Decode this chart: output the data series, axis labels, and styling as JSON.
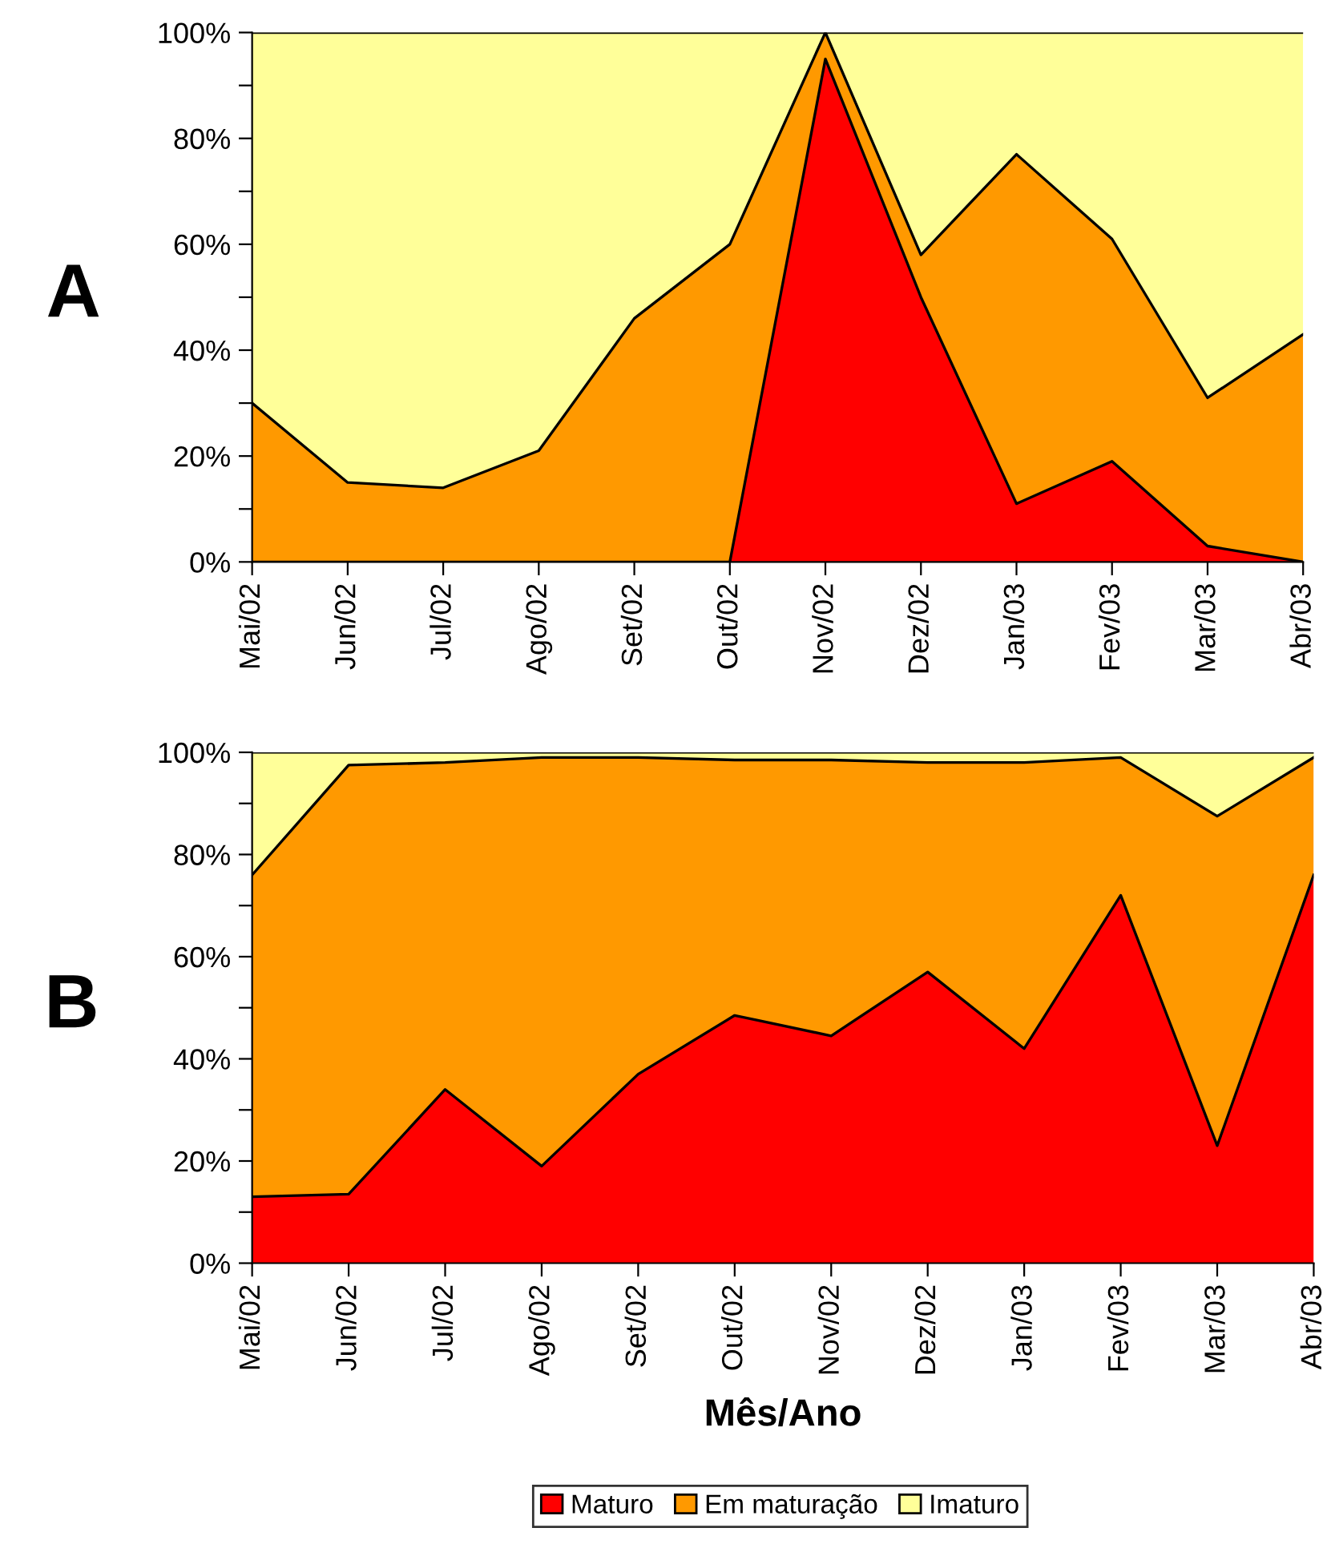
{
  "chart_data": [
    {
      "type": "area",
      "stacked": true,
      "annotations": [
        "A"
      ],
      "legend": false,
      "grid": false,
      "categories": [
        "Mai/02",
        "Jun/02",
        "Jul/02",
        "Ago/02",
        "Set/02",
        "Out/02",
        "Nov/02",
        "Dez/02",
        "Jan/03",
        "Fev/03",
        "Mar/03",
        "Abr/03"
      ],
      "ylim": [
        0,
        100
      ],
      "yticks": [
        {
          "value": 0,
          "label": "0%"
        },
        {
          "value": 10,
          "label": null
        },
        {
          "value": 20,
          "label": "20%"
        },
        {
          "value": 30,
          "label": null
        },
        {
          "value": 40,
          "label": "40%"
        },
        {
          "value": 50,
          "label": null
        },
        {
          "value": 60,
          "label": "60%"
        },
        {
          "value": 70,
          "label": null
        },
        {
          "value": 80,
          "label": "80%"
        },
        {
          "value": 90,
          "label": null
        },
        {
          "value": 100,
          "label": "100%"
        }
      ],
      "series": [
        {
          "color": "#ff0000",
          "values": [
            0,
            0,
            0,
            0,
            0,
            0,
            95,
            50,
            11,
            19,
            3,
            0
          ]
        },
        {
          "color": "#ff9900",
          "values": [
            30,
            15,
            14,
            21,
            46,
            60,
            5,
            8,
            66,
            42,
            28,
            43
          ]
        },
        {
          "color": "#ffff99",
          "values": [
            70,
            85,
            86,
            79,
            54,
            40,
            0,
            42,
            23,
            39,
            69,
            57
          ]
        }
      ]
    },
    {
      "type": "area",
      "stacked": true,
      "annotations": [
        "B"
      ],
      "legend": "bottom",
      "grid": false,
      "xlabel": "Mês/Ano",
      "categories": [
        "Mai/02",
        "Jun/02",
        "Jul/02",
        "Ago/02",
        "Set/02",
        "Out/02",
        "Nov/02",
        "Dez/02",
        "Jan/03",
        "Fev/03",
        "Mar/03",
        "Abr/03"
      ],
      "ylim": [
        0,
        100
      ],
      "yticks": [
        {
          "value": 0,
          "label": "0%"
        },
        {
          "value": 10,
          "label": null
        },
        {
          "value": 20,
          "label": "20%"
        },
        {
          "value": 30,
          "label": null
        },
        {
          "value": 40,
          "label": "40%"
        },
        {
          "value": 50,
          "label": null
        },
        {
          "value": 60,
          "label": "60%"
        },
        {
          "value": 70,
          "label": null
        },
        {
          "value": 80,
          "label": "80%"
        },
        {
          "value": 90,
          "label": null
        },
        {
          "value": 100,
          "label": "100%"
        }
      ],
      "series": [
        {
          "name": "Maturo",
          "color": "#ff0000",
          "values": [
            13,
            13.5,
            34,
            19,
            37,
            48.5,
            44.5,
            57,
            42,
            72,
            23,
            76
          ]
        },
        {
          "name": "Em maturação",
          "color": "#ff9900",
          "values": [
            63,
            84,
            64,
            80,
            62,
            50,
            54,
            41,
            56,
            27,
            64.5,
            23
          ]
        },
        {
          "name": "Imaturo",
          "color": "#ffff99",
          "values": [
            24,
            2.5,
            2,
            1,
            1,
            1.5,
            1.5,
            2,
            2,
            1,
            12.5,
            1
          ]
        }
      ]
    }
  ]
}
